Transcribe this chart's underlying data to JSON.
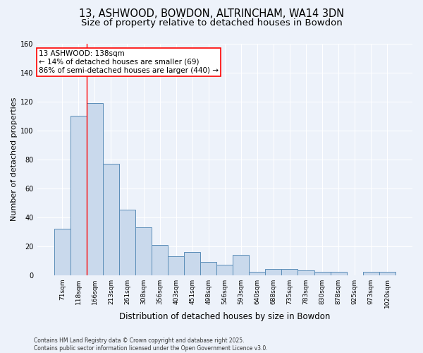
{
  "title1": "13, ASHWOOD, BOWDON, ALTRINCHAM, WA14 3DN",
  "title2": "Size of property relative to detached houses in Bowdon",
  "xlabel": "Distribution of detached houses by size in Bowdon",
  "ylabel": "Number of detached properties",
  "bar_color": "#c9d9ec",
  "bar_edge_color": "#5b8db8",
  "categories": [
    "71sqm",
    "118sqm",
    "166sqm",
    "213sqm",
    "261sqm",
    "308sqm",
    "356sqm",
    "403sqm",
    "451sqm",
    "498sqm",
    "546sqm",
    "593sqm",
    "640sqm",
    "688sqm",
    "735sqm",
    "783sqm",
    "830sqm",
    "878sqm",
    "925sqm",
    "973sqm",
    "1020sqm"
  ],
  "values": [
    32,
    110,
    119,
    77,
    45,
    33,
    21,
    13,
    16,
    9,
    7,
    14,
    2,
    4,
    4,
    3,
    2,
    2,
    0,
    2,
    2
  ],
  "red_line_x": 1.5,
  "annotation_text": "13 ASHWOOD: 138sqm\n← 14% of detached houses are smaller (69)\n86% of semi-detached houses are larger (440) →",
  "annotation_box_color": "white",
  "annotation_box_edge_color": "red",
  "ylim": [
    0,
    160
  ],
  "yticks": [
    0,
    20,
    40,
    60,
    80,
    100,
    120,
    140,
    160
  ],
  "background_color": "#edf2fa",
  "footer": "Contains HM Land Registry data © Crown copyright and database right 2025.\nContains public sector information licensed under the Open Government Licence v3.0.",
  "grid_color": "white",
  "title_fontsize": 10.5,
  "subtitle_fontsize": 9.5,
  "annot_fontsize": 7.5,
  "ylabel_fontsize": 8,
  "xlabel_fontsize": 8.5,
  "tick_fontsize": 6.5,
  "footer_fontsize": 5.5
}
